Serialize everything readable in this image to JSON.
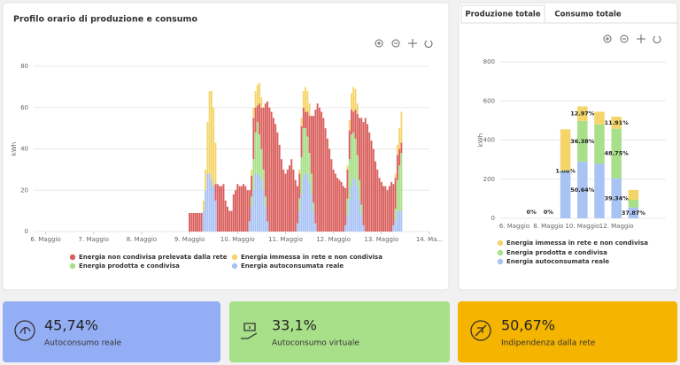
{
  "tabs": [
    "Produzione totale",
    "Consumo totale"
  ],
  "kpis": [
    {
      "value": "45,74%",
      "label": "Autoconsumo reale"
    },
    {
      "value": "33,1%",
      "label": "Autoconsumo virtuale"
    },
    {
      "value": "50,67%",
      "label": "Indipendenza dalla rete"
    }
  ],
  "chart_data": [
    {
      "type": "bar",
      "stacked": true,
      "title": "Profilo orario di produzione e consumo",
      "y_label": "kWh",
      "grid": true,
      "legend": "bottom",
      "xlim": [
        -6,
        192
      ],
      "xticks": [
        {
          "value": 0,
          "label": "6. Maggio"
        },
        {
          "value": 24,
          "label": "7. Maggio"
        },
        {
          "value": 48,
          "label": "8. Maggio"
        },
        {
          "value": 72,
          "label": "9. Maggio"
        },
        {
          "value": 96,
          "label": "10. Maggio"
        },
        {
          "value": 120,
          "label": "11. Maggio"
        },
        {
          "value": 144,
          "label": "12. Maggio"
        },
        {
          "value": 168,
          "label": "13. Maggio"
        },
        {
          "value": 192,
          "label": "14. Ma..."
        }
      ],
      "ylim": [
        0,
        80
      ],
      "yticks": [
        0,
        20,
        40,
        60,
        80
      ],
      "x": [
        72,
        73,
        74,
        75,
        76,
        77,
        78,
        79,
        80,
        81,
        82,
        83,
        84,
        85,
        86,
        87,
        88,
        89,
        90,
        91,
        92,
        93,
        94,
        95,
        96,
        97,
        98,
        99,
        100,
        101,
        102,
        103,
        104,
        105,
        106,
        107,
        108,
        109,
        110,
        111,
        112,
        113,
        114,
        115,
        116,
        117,
        118,
        119,
        120,
        121,
        122,
        123,
        124,
        125,
        126,
        127,
        128,
        129,
        130,
        131,
        132,
        133,
        134,
        135,
        136,
        137,
        138,
        139,
        140,
        141,
        142,
        143,
        144,
        145,
        146,
        147,
        148,
        149,
        150,
        151,
        152,
        153,
        154,
        155,
        156,
        157,
        158,
        159,
        160,
        161,
        162,
        163,
        164,
        165,
        166,
        167,
        168,
        169,
        170,
        171,
        172,
        173,
        174,
        175,
        176,
        177,
        178
      ],
      "series": [
        {
          "name": "Energia autoconsumata reale",
          "color": "#a9c3f5",
          "values": [
            0,
            0,
            0,
            0,
            0,
            0,
            0,
            10,
            20,
            28,
            28,
            25,
            22,
            15,
            0,
            0,
            0,
            0,
            0,
            0,
            0,
            0,
            0,
            0,
            0,
            0,
            0,
            0,
            0,
            0,
            5,
            12,
            20,
            28,
            28,
            27,
            25,
            20,
            12,
            5,
            0,
            0,
            0,
            0,
            0,
            0,
            0,
            0,
            0,
            0,
            0,
            0,
            0,
            0,
            4,
            10,
            18,
            26,
            28,
            28,
            24,
            18,
            10,
            4,
            0,
            0,
            0,
            0,
            0,
            0,
            0,
            0,
            0,
            0,
            0,
            0,
            0,
            0,
            3,
            8,
            15,
            22,
            26,
            25,
            22,
            15,
            8,
            3,
            0,
            0,
            0,
            0,
            0,
            0,
            0,
            0,
            0,
            0,
            0,
            0,
            0,
            0,
            3,
            6,
            10,
            10,
            10
          ]
        },
        {
          "name": "Energia prodotta e condivisa",
          "color": "#a8e08a",
          "values": [
            0,
            0,
            0,
            0,
            0,
            0,
            0,
            0,
            0,
            0,
            0,
            0,
            0,
            0,
            0,
            0,
            0,
            0,
            0,
            0,
            0,
            0,
            0,
            0,
            0,
            0,
            0,
            0,
            0,
            0,
            0,
            5,
            15,
            20,
            25,
            20,
            15,
            10,
            5,
            0,
            0,
            0,
            0,
            0,
            0,
            0,
            0,
            0,
            0,
            0,
            0,
            0,
            0,
            0,
            0,
            6,
            18,
            24,
            22,
            18,
            14,
            10,
            4,
            0,
            0,
            0,
            0,
            0,
            0,
            0,
            0,
            0,
            0,
            0,
            0,
            0,
            0,
            0,
            0,
            8,
            20,
            25,
            22,
            20,
            15,
            10,
            5,
            0,
            0,
            0,
            0,
            0,
            0,
            0,
            0,
            0,
            0,
            0,
            0,
            0,
            0,
            0,
            0,
            5,
            15,
            22,
            28
          ]
        },
        {
          "name": "Energia non condivisa prelevata dalla rete",
          "color": "#d9605e",
          "values": [
            9,
            9,
            9,
            9,
            9,
            9,
            9,
            0,
            0,
            0,
            0,
            0,
            0,
            8,
            23,
            22,
            22,
            23,
            15,
            12,
            10,
            10,
            18,
            20,
            23,
            22,
            22,
            23,
            22,
            20,
            15,
            10,
            20,
            12,
            8,
            15,
            20,
            30,
            45,
            58,
            60,
            58,
            55,
            52,
            48,
            42,
            35,
            30,
            28,
            30,
            32,
            35,
            30,
            25,
            18,
            12,
            15,
            10,
            8,
            12,
            18,
            28,
            42,
            55,
            62,
            60,
            58,
            55,
            50,
            45,
            40,
            35,
            30,
            28,
            26,
            25,
            24,
            22,
            18,
            14,
            14,
            12,
            10,
            14,
            20,
            30,
            42,
            50,
            55,
            52,
            48,
            44,
            40,
            34,
            30,
            26,
            24,
            22,
            22,
            20,
            22,
            24,
            20,
            15,
            12,
            8,
            5
          ]
        },
        {
          "name": "Energia immessa in rete e non condivisa",
          "color": "#f5d56a",
          "values": [
            0,
            0,
            0,
            0,
            0,
            0,
            0,
            5,
            10,
            25,
            40,
            43,
            38,
            20,
            0,
            0,
            0,
            0,
            0,
            0,
            0,
            0,
            0,
            0,
            0,
            0,
            0,
            0,
            0,
            0,
            0,
            3,
            5,
            8,
            10,
            10,
            5,
            0,
            0,
            0,
            0,
            0,
            0,
            0,
            0,
            0,
            0,
            0,
            0,
            0,
            0,
            0,
            0,
            0,
            0,
            2,
            4,
            8,
            12,
            10,
            6,
            0,
            0,
            0,
            0,
            0,
            0,
            0,
            0,
            0,
            0,
            0,
            0,
            0,
            0,
            0,
            0,
            0,
            0,
            2,
            5,
            8,
            12,
            10,
            5,
            0,
            0,
            0,
            0,
            0,
            0,
            0,
            0,
            0,
            0,
            0,
            0,
            0,
            0,
            0,
            0,
            0,
            0,
            2,
            5,
            10,
            15
          ]
        }
      ]
    },
    {
      "type": "bar",
      "stacked": true,
      "y_label": "kWh",
      "grid": true,
      "legend": "bottom",
      "categories": [
        "6. Maggio",
        null,
        "8. Maggio",
        null,
        "10. Maggio",
        null,
        "12. Maggio",
        null
      ],
      "ylim": [
        0,
        800
      ],
      "yticks": [
        0,
        200,
        400,
        600,
        800
      ],
      "series": [
        {
          "name": "Energia immessa in rete e non condivisa",
          "color": "#f5d56a",
          "values": [
            0,
            0,
            0,
            210,
            74,
            65,
            62,
            50
          ],
          "percent_labels": [
            null,
            null,
            null,
            null,
            "12.97%",
            null,
            "11.91%",
            null
          ]
        },
        {
          "name": "Energia prodotta e condivisa",
          "color": "#a8e08a",
          "values": [
            0,
            0,
            0,
            5,
            208,
            200,
            253,
            40
          ],
          "percent_labels": [
            null,
            null,
            null,
            "1.08%",
            "36.38%",
            null,
            "48.75%",
            null
          ]
        },
        {
          "name": "Energia autoconsumata reale",
          "color": "#a9c3f5",
          "values": [
            0,
            0,
            0,
            240,
            290,
            280,
            205,
            55
          ],
          "percent_labels": [
            null,
            "0%",
            "0%",
            null,
            "50.64%",
            null,
            "39.34%",
            "37.87%"
          ]
        }
      ]
    }
  ]
}
